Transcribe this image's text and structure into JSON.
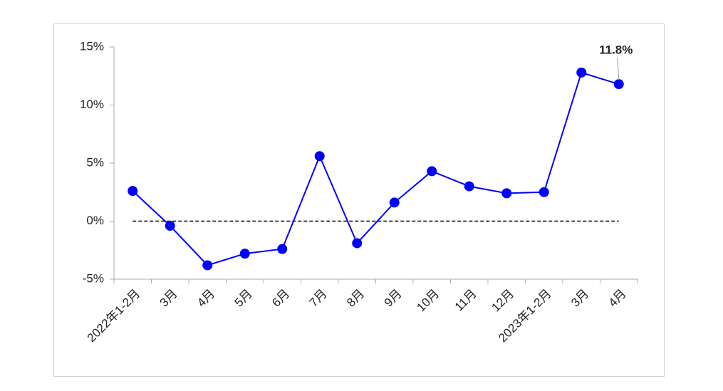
{
  "chart_data": {
    "type": "line",
    "categories": [
      "2022年1-2月",
      "3月",
      "4月",
      "5月",
      "6月",
      "7月",
      "8月",
      "9月",
      "10月",
      "11月",
      "12月",
      "2023年1-2月",
      "3月",
      "4月"
    ],
    "values": [
      2.6,
      -0.4,
      -3.8,
      -2.8,
      -2.4,
      5.6,
      -1.9,
      1.6,
      4.3,
      3.0,
      2.4,
      2.5,
      12.8,
      11.8
    ],
    "value_labels": [
      null,
      null,
      null,
      null,
      null,
      null,
      null,
      null,
      null,
      null,
      null,
      null,
      null,
      "11.8%"
    ],
    "color": "#0000ff",
    "ylim": [
      -5,
      15
    ],
    "yticks": [
      {
        "value": -5,
        "label": "-5%"
      },
      {
        "value": 0,
        "label": "0%"
      },
      {
        "value": 5,
        "label": "5%"
      },
      {
        "value": 10,
        "label": "10%"
      },
      {
        "value": 15,
        "label": "15%"
      }
    ],
    "hline": 0
  }
}
